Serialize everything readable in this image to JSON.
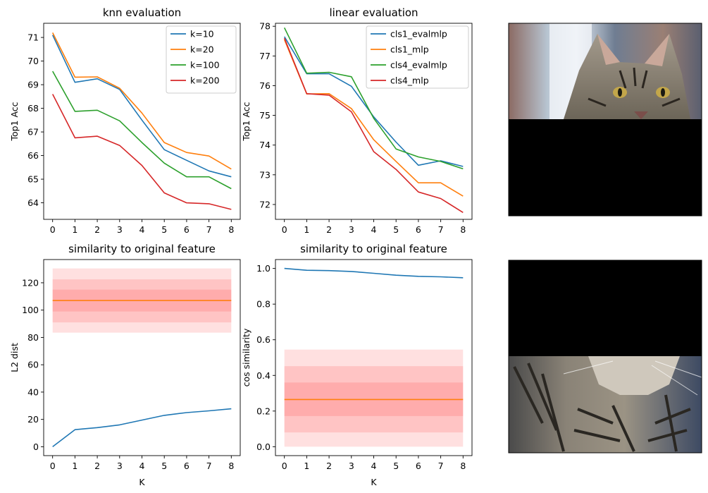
{
  "chart_data": [
    {
      "type": "line",
      "title": "knn evaluation",
      "xlabel": "",
      "ylabel": "Top1 Acc",
      "xlim": [
        -0.4,
        8.4
      ],
      "ylim": [
        63.3,
        71.6
      ],
      "xticks": [
        0,
        1,
        2,
        3,
        4,
        5,
        6,
        7,
        8
      ],
      "yticks": [
        64,
        65,
        66,
        67,
        68,
        69,
        70,
        71
      ],
      "legend": "top-right",
      "x": [
        0,
        1,
        2,
        3,
        4,
        5,
        6,
        7,
        8
      ],
      "series": [
        {
          "name": "k=10",
          "color": "#1f77b4",
          "values": [
            71.1,
            69.1,
            69.25,
            68.8,
            67.5,
            66.25,
            65.8,
            65.35,
            65.1
          ]
        },
        {
          "name": "k=20",
          "color": "#ff7f0e",
          "values": [
            71.2,
            69.32,
            69.33,
            68.85,
            67.8,
            66.55,
            66.13,
            65.98,
            65.43
          ]
        },
        {
          "name": "k=100",
          "color": "#2ca02c",
          "values": [
            69.57,
            67.87,
            67.92,
            67.47,
            66.55,
            65.68,
            65.1,
            65.1,
            64.6
          ]
        },
        {
          "name": "k=200",
          "color": "#d62728",
          "values": [
            68.6,
            66.75,
            66.82,
            66.43,
            65.58,
            64.42,
            64.0,
            63.96,
            63.72
          ]
        }
      ]
    },
    {
      "type": "line",
      "title": "linear evaluation",
      "xlabel": "",
      "ylabel": "Top1 Acc",
      "xlim": [
        -0.4,
        8.4
      ],
      "ylim": [
        71.5,
        78.1
      ],
      "xticks": [
        0,
        1,
        2,
        3,
        4,
        5,
        6,
        7,
        8
      ],
      "yticks": [
        72,
        73,
        74,
        75,
        76,
        77,
        78
      ],
      "legend": "top-right",
      "x": [
        0,
        1,
        2,
        3,
        4,
        5,
        6,
        7,
        8
      ],
      "series": [
        {
          "name": "cls1_evalmlp",
          "color": "#1f77b4",
          "values": [
            77.65,
            76.4,
            76.4,
            75.98,
            74.95,
            74.1,
            73.32,
            73.47,
            73.28
          ]
        },
        {
          "name": "cls1_mlp",
          "color": "#ff7f0e",
          "values": [
            77.55,
            75.72,
            75.73,
            75.23,
            74.18,
            73.45,
            72.73,
            72.73,
            72.28
          ]
        },
        {
          "name": "cls4_evalmlp",
          "color": "#2ca02c",
          "values": [
            77.95,
            76.42,
            76.45,
            76.3,
            74.9,
            73.87,
            73.6,
            73.45,
            73.2
          ]
        },
        {
          "name": "cls4_mlp",
          "color": "#d62728",
          "values": [
            77.6,
            75.73,
            75.68,
            75.12,
            73.78,
            73.18,
            72.42,
            72.2,
            71.73
          ]
        }
      ]
    },
    {
      "type": "line",
      "title": "similarity to original feature",
      "xlabel": "K",
      "ylabel": "L2 dist",
      "xlim": [
        -0.4,
        8.4
      ],
      "ylim": [
        -6.5,
        137
      ],
      "xticks": [
        0,
        1,
        2,
        3,
        4,
        5,
        6,
        7,
        8
      ],
      "yticks": [
        0,
        20,
        40,
        60,
        80,
        100,
        120
      ],
      "x": [
        0,
        1,
        2,
        3,
        4,
        5,
        6,
        7,
        8
      ],
      "series": [
        {
          "color": "#1f77b4",
          "values": [
            0,
            12.5,
            14,
            16,
            19.5,
            23,
            25,
            26.3,
            27.8
          ]
        },
        {
          "color": "#ff7f0e",
          "values": [
            107,
            107,
            107,
            107,
            107,
            107,
            107,
            107,
            107
          ]
        }
      ],
      "bands": [
        {
          "lo": 83.5,
          "hi": 130.5
        },
        {
          "lo": 91,
          "hi": 122.5
        },
        {
          "lo": 99,
          "hi": 115
        }
      ],
      "band_color": "#ff0000"
    },
    {
      "type": "line",
      "title": "similarity to original feature",
      "xlabel": "K",
      "ylabel": "cos similarity",
      "xlim": [
        -0.4,
        8.4
      ],
      "ylim": [
        -0.05,
        1.05
      ],
      "xticks": [
        0,
        1,
        2,
        3,
        4,
        5,
        6,
        7,
        8
      ],
      "yticks": [
        0.0,
        0.2,
        0.4,
        0.6,
        0.8,
        1.0
      ],
      "x": [
        0,
        1,
        2,
        3,
        4,
        5,
        6,
        7,
        8
      ],
      "series": [
        {
          "color": "#1f77b4",
          "values": [
            1.0,
            0.99,
            0.988,
            0.983,
            0.973,
            0.962,
            0.956,
            0.953,
            0.948
          ]
        },
        {
          "color": "#ff7f0e",
          "values": [
            0.265,
            0.265,
            0.265,
            0.265,
            0.265,
            0.265,
            0.265,
            0.265,
            0.265
          ]
        }
      ],
      "bands": [
        {
          "lo": 0.0,
          "hi": 0.545
        },
        {
          "lo": 0.08,
          "hi": 0.452
        },
        {
          "lo": 0.172,
          "hi": 0.36
        }
      ],
      "band_color": "#ff0000"
    }
  ],
  "images": [
    {
      "name": "cat-top-half",
      "masked_part": "bottom"
    },
    {
      "name": "cat-bottom-half",
      "masked_part": "top"
    }
  ]
}
